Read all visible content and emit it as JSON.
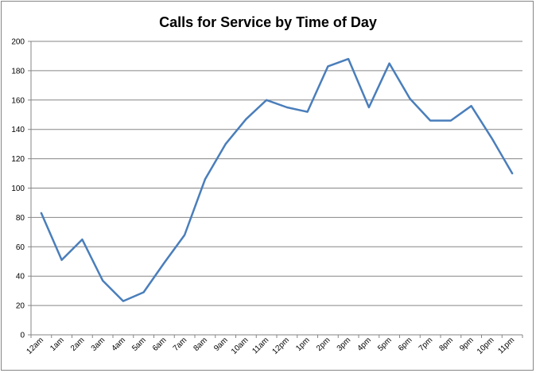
{
  "chart_data": {
    "type": "line",
    "title": "Calls for Service by Time of Day",
    "xlabel": "",
    "ylabel": "",
    "categories": [
      "12am",
      "1am",
      "2am",
      "3am",
      "4am",
      "5am",
      "6am",
      "7am",
      "8am",
      "9am",
      "10am",
      "11am",
      "12pm",
      "1pm",
      "2pm",
      "3pm",
      "4pm",
      "5pm",
      "6pm",
      "7pm",
      "8pm",
      "9pm",
      "10pm",
      "11pm"
    ],
    "series": [
      {
        "values": [
          83,
          51,
          65,
          37,
          23,
          29,
          49,
          68,
          106,
          130,
          147,
          160,
          155,
          152,
          183,
          188,
          155,
          185,
          161,
          146,
          146,
          156,
          134,
          110
        ]
      }
    ],
    "ylim": [
      0,
      200
    ],
    "yticks": [
      0,
      20,
      40,
      60,
      80,
      100,
      120,
      140,
      160,
      180,
      200
    ],
    "grid": true,
    "legend": "none",
    "line_color": "#4a7ebb"
  }
}
